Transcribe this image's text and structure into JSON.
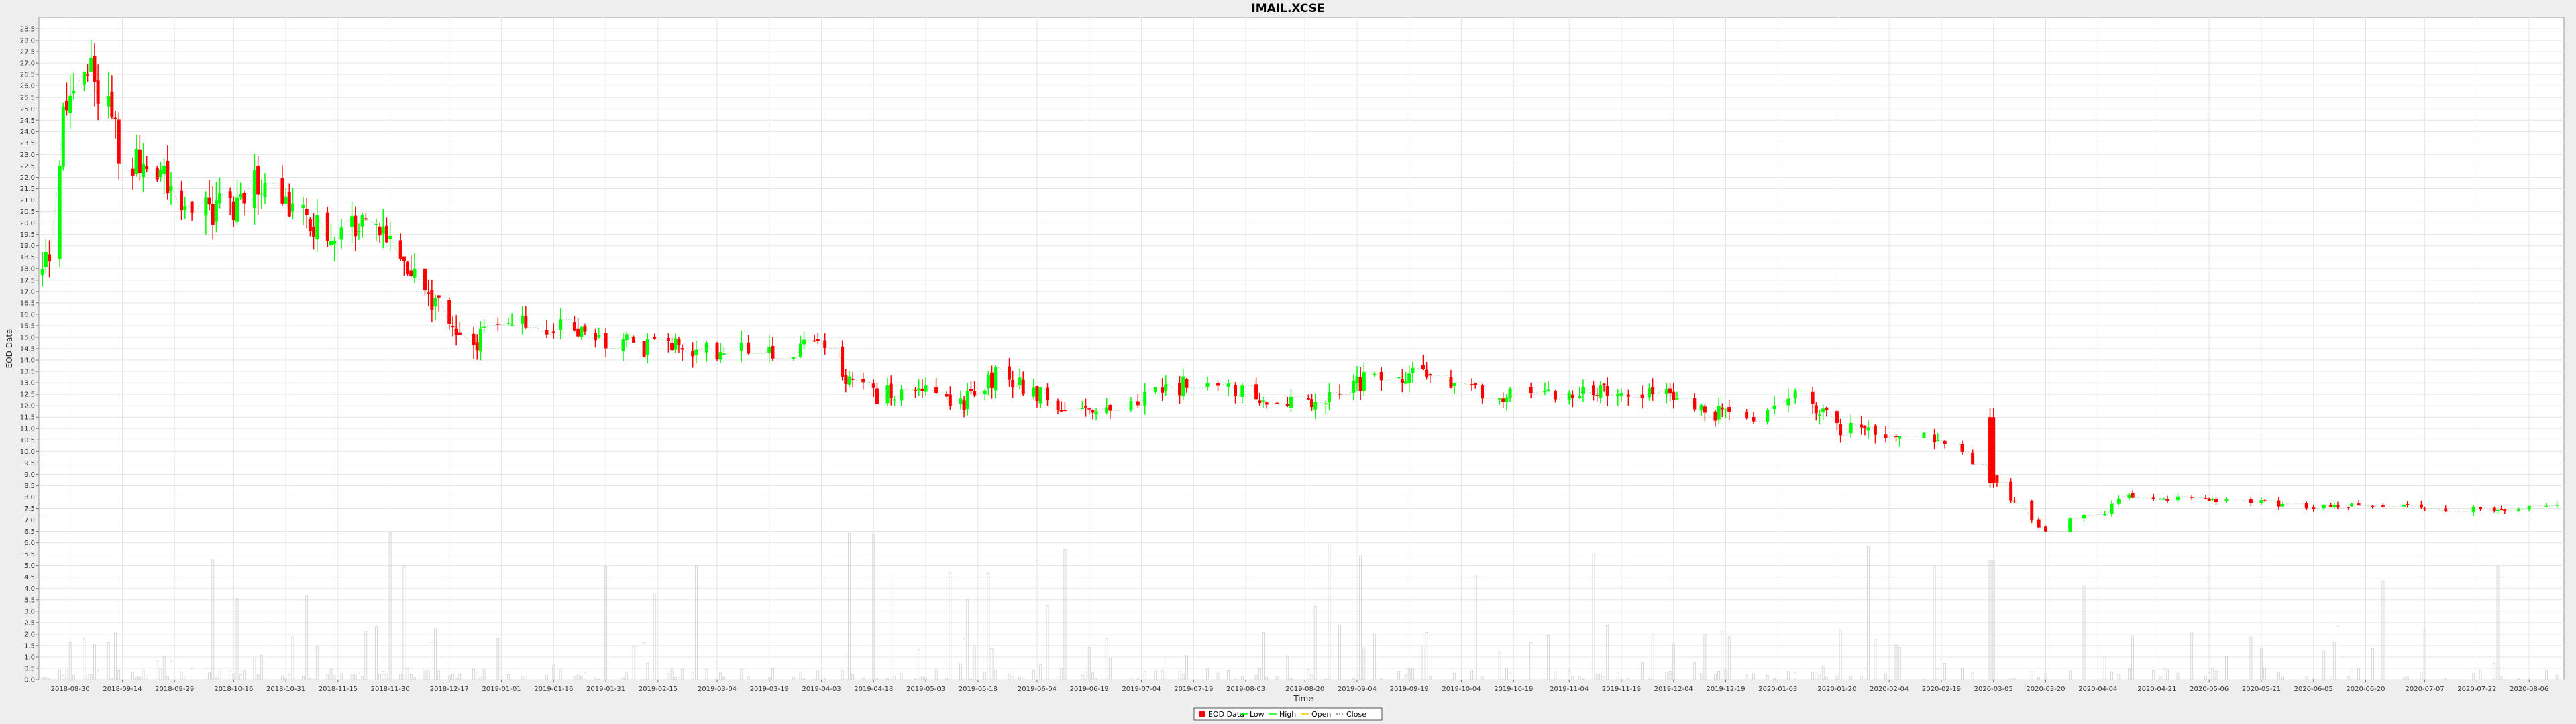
{
  "chart_data": {
    "type": "candlestick",
    "title": "IMAIL.XCSE",
    "xlabel": "Time",
    "ylabel": "EOD Data",
    "ylim": [
      0,
      29
    ],
    "yticks": [
      "0.0",
      "0.5",
      "1.0",
      "1.5",
      "2.0",
      "2.5",
      "3.0",
      "3.5",
      "4.0",
      "4.5",
      "5.0",
      "5.5",
      "6.0",
      "6.5",
      "7.0",
      "7.5",
      "8.0",
      "8.5",
      "9.0",
      "9.5",
      "10.0",
      "10.5",
      "11.0",
      "11.5",
      "12.0",
      "12.5",
      "13.0",
      "13.5",
      "14.0",
      "14.5",
      "15.0",
      "15.5",
      "16.0",
      "16.5",
      "17.0",
      "17.5",
      "18.0",
      "18.5",
      "19.0",
      "19.5",
      "20.0",
      "20.5",
      "21.0",
      "21.5",
      "22.0",
      "22.5",
      "23.0",
      "23.5",
      "24.0",
      "24.5",
      "25.0",
      "25.5",
      "26.0",
      "26.5",
      "27.0",
      "27.5",
      "28.0",
      "28.5"
    ],
    "xrange": [
      "2018-08-21",
      "2020-08-16"
    ],
    "xticks": [
      "2018-08-30",
      "2018-09-14",
      "2018-09-29",
      "2018-10-16",
      "2018-10-31",
      "2018-11-15",
      "2018-11-30",
      "2018-12-17",
      "2019-01-01",
      "2019-01-16",
      "2019-01-31",
      "2019-02-15",
      "2019-03-04",
      "2019-03-19",
      "2019-04-03",
      "2019-04-18",
      "2019-05-03",
      "2019-05-18",
      "2019-06-04",
      "2019-06-19",
      "2019-07-04",
      "2019-07-19",
      "2019-08-03",
      "2019-08-20",
      "2019-09-04",
      "2019-09-19",
      "2019-10-04",
      "2019-10-19",
      "2019-11-04",
      "2019-11-19",
      "2019-12-04",
      "2019-12-19",
      "2020-01-03",
      "2020-01-20",
      "2020-02-04",
      "2020-02-19",
      "2020-03-05",
      "2020-03-20",
      "2020-04-04",
      "2020-04-21",
      "2020-05-06",
      "2020-05-21",
      "2020-06-05",
      "2020-06-20",
      "2020-07-07",
      "2020-07-22",
      "2020-08-06"
    ],
    "grid": true,
    "legend": "bottom-center",
    "series": [
      {
        "name": "EOD Data",
        "color": "#ff0000"
      },
      {
        "name": "Low",
        "color": "#00ff00"
      },
      {
        "name": "High",
        "color": "#00ff00"
      },
      {
        "name": "Open",
        "color": "#ffc800"
      },
      {
        "name": "Close",
        "color": "#808080"
      }
    ],
    "up_color": "#00ff00",
    "down_color": "#ff0000",
    "anchors": [
      [
        "2018-08-22",
        17.8
      ],
      [
        "2018-08-25",
        19.2
      ],
      [
        "2018-08-28",
        24.5
      ],
      [
        "2018-09-01",
        26.5
      ],
      [
        "2018-09-05",
        27.0
      ],
      [
        "2018-09-10",
        25.0
      ],
      [
        "2018-09-15",
        22.5
      ],
      [
        "2018-09-20",
        22.5
      ],
      [
        "2018-09-25",
        22.0
      ],
      [
        "2018-10-02",
        21.0
      ],
      [
        "2018-10-08",
        20.5
      ],
      [
        "2018-10-16",
        20.8
      ],
      [
        "2018-10-22",
        21.5
      ],
      [
        "2018-10-31",
        20.5
      ],
      [
        "2018-11-10",
        20.0
      ],
      [
        "2018-11-20",
        19.7
      ],
      [
        "2018-11-30",
        19.5
      ],
      [
        "2018-12-05",
        18.0
      ],
      [
        "2018-12-10",
        17.0
      ],
      [
        "2018-12-17",
        16.0
      ],
      [
        "2018-12-22",
        14.5
      ],
      [
        "2019-01-01",
        15.5
      ],
      [
        "2019-01-16",
        15.5
      ],
      [
        "2019-01-31",
        15.0
      ],
      [
        "2019-02-15",
        14.5
      ],
      [
        "2019-03-04",
        14.5
      ],
      [
        "2019-03-19",
        14.5
      ],
      [
        "2019-04-03",
        14.5
      ],
      [
        "2019-04-10",
        13.0
      ],
      [
        "2019-04-18",
        12.5
      ],
      [
        "2019-05-03",
        12.5
      ],
      [
        "2019-05-12",
        11.8
      ],
      [
        "2019-05-18",
        12.8
      ],
      [
        "2019-05-25",
        13.5
      ],
      [
        "2019-06-04",
        12.5
      ],
      [
        "2019-06-19",
        11.5
      ],
      [
        "2019-07-04",
        12.5
      ],
      [
        "2019-07-19",
        13.0
      ],
      [
        "2019-08-03",
        12.5
      ],
      [
        "2019-08-20",
        12.0
      ],
      [
        "2019-09-04",
        13.0
      ],
      [
        "2019-09-19",
        13.5
      ],
      [
        "2019-10-04",
        12.8
      ],
      [
        "2019-10-19",
        12.5
      ],
      [
        "2019-11-04",
        12.5
      ],
      [
        "2019-11-19",
        12.8
      ],
      [
        "2019-12-04",
        12.5
      ],
      [
        "2019-12-19",
        11.5
      ],
      [
        "2020-01-03",
        11.8
      ],
      [
        "2020-01-10",
        12.5
      ],
      [
        "2020-01-20",
        11.0
      ],
      [
        "2020-02-04",
        10.8
      ],
      [
        "2020-02-19",
        10.5
      ],
      [
        "2020-02-28",
        9.5
      ],
      [
        "2020-03-05",
        9.0
      ],
      [
        "2020-03-12",
        7.5
      ],
      [
        "2020-03-20",
        6.5
      ],
      [
        "2020-03-28",
        7.0
      ],
      [
        "2020-04-04",
        7.2
      ],
      [
        "2020-04-12",
        8.0
      ],
      [
        "2020-04-21",
        8.0
      ],
      [
        "2020-05-06",
        7.8
      ],
      [
        "2020-05-21",
        7.8
      ],
      [
        "2020-06-05",
        7.6
      ],
      [
        "2020-06-20",
        7.6
      ],
      [
        "2020-07-07",
        7.5
      ],
      [
        "2020-07-22",
        7.5
      ],
      [
        "2020-08-06",
        7.5
      ],
      [
        "2020-08-15",
        7.6
      ]
    ],
    "volume_visible_range": [
      0,
      7
    ]
  }
}
